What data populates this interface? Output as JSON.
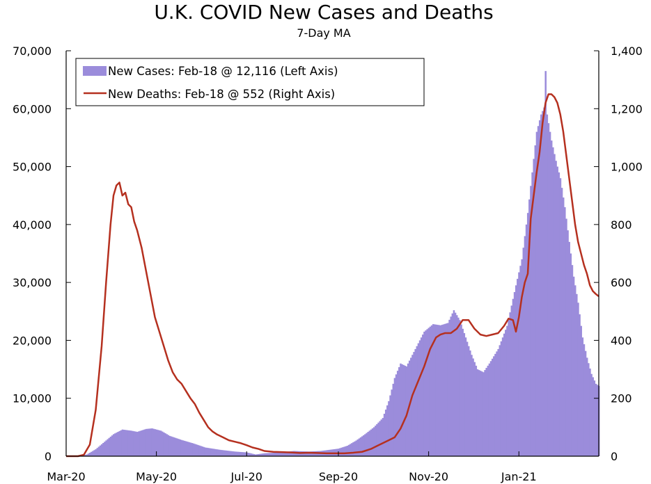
{
  "chart_data": {
    "type": "bar+line",
    "title": "U.K. COVID New Cases and Deaths",
    "subtitle": "7-Day MA",
    "x_start": "2020-03-01",
    "x_end": "2021-02-18",
    "x_tick_labels": [
      "Mar-20",
      "May-20",
      "Jul-20",
      "Sep-20",
      "Nov-20",
      "Jan-21"
    ],
    "x_tick_days": [
      0,
      61,
      122,
      184,
      245,
      306
    ],
    "y_left": {
      "label": "New Cases",
      "ylim": [
        0,
        70000
      ],
      "tick_values": [
        0,
        10000,
        20000,
        30000,
        40000,
        50000,
        60000,
        70000
      ],
      "tick_labels": [
        "0",
        "10,000",
        "20,000",
        "30,000",
        "40,000",
        "50,000",
        "60,000",
        "70,000"
      ]
    },
    "y_right": {
      "label": "New Deaths",
      "ylim": [
        0,
        1400
      ],
      "tick_values": [
        0,
        200,
        400,
        600,
        800,
        1000,
        1200,
        1400
      ],
      "tick_labels": [
        "0",
        "200",
        "400",
        "600",
        "800",
        "1,000",
        "1,200",
        "1,400"
      ]
    },
    "legend": {
      "position": "top-left",
      "entries": [
        "New Cases: Feb-18 @ 12,116 (Left Axis)",
        "New Deaths: Feb-18 @ 552 (Right Axis)"
      ]
    },
    "series": [
      {
        "name": "New Cases",
        "axis": "left",
        "kind": "bar",
        "color": "#9b8cdb",
        "points": [
          [
            0,
            0
          ],
          [
            8,
            0
          ],
          [
            14,
            300
          ],
          [
            20,
            1200
          ],
          [
            26,
            2500
          ],
          [
            32,
            3800
          ],
          [
            38,
            4600
          ],
          [
            44,
            4400
          ],
          [
            48,
            4200
          ],
          [
            54,
            4700
          ],
          [
            58,
            4800
          ],
          [
            64,
            4400
          ],
          [
            70,
            3500
          ],
          [
            78,
            2800
          ],
          [
            86,
            2200
          ],
          [
            94,
            1500
          ],
          [
            104,
            1100
          ],
          [
            114,
            800
          ],
          [
            122,
            650
          ],
          [
            128,
            300
          ],
          [
            134,
            500
          ],
          [
            144,
            650
          ],
          [
            154,
            900
          ],
          [
            164,
            800
          ],
          [
            172,
            900
          ],
          [
            178,
            1100
          ],
          [
            184,
            1300
          ],
          [
            190,
            1800
          ],
          [
            196,
            2700
          ],
          [
            202,
            3800
          ],
          [
            208,
            5000
          ],
          [
            214,
            6600
          ],
          [
            218,
            9500
          ],
          [
            222,
            13500
          ],
          [
            226,
            16000
          ],
          [
            230,
            15500
          ],
          [
            236,
            18500
          ],
          [
            242,
            21500
          ],
          [
            248,
            22800
          ],
          [
            253,
            22600
          ],
          [
            258,
            23000
          ],
          [
            262,
            25200
          ],
          [
            266,
            23500
          ],
          [
            270,
            20500
          ],
          [
            274,
            17500
          ],
          [
            278,
            15000
          ],
          [
            282,
            14500
          ],
          [
            286,
            16000
          ],
          [
            292,
            18500
          ],
          [
            298,
            22500
          ],
          [
            304,
            29500
          ],
          [
            308,
            34000
          ],
          [
            312,
            42000
          ],
          [
            315,
            49000
          ],
          [
            318,
            56000
          ],
          [
            321,
            59000
          ],
          [
            323,
            60200
          ],
          [
            324,
            66500
          ],
          [
            325,
            59000
          ],
          [
            328,
            54500
          ],
          [
            331,
            51000
          ],
          [
            334,
            48000
          ],
          [
            337,
            43000
          ],
          [
            340,
            37000
          ],
          [
            343,
            31000
          ],
          [
            346,
            26500
          ],
          [
            349,
            20500
          ],
          [
            352,
            17000
          ],
          [
            355,
            14200
          ],
          [
            358,
            12500
          ],
          [
            360,
            12116
          ]
        ]
      },
      {
        "name": "New Deaths",
        "axis": "right",
        "kind": "line",
        "color": "#b5301f",
        "points": [
          [
            0,
            0
          ],
          [
            8,
            0
          ],
          [
            12,
            5
          ],
          [
            16,
            40
          ],
          [
            20,
            160
          ],
          [
            24,
            380
          ],
          [
            27,
            600
          ],
          [
            30,
            800
          ],
          [
            32,
            900
          ],
          [
            34,
            935
          ],
          [
            36,
            945
          ],
          [
            38,
            900
          ],
          [
            40,
            910
          ],
          [
            42,
            870
          ],
          [
            44,
            860
          ],
          [
            46,
            810
          ],
          [
            48,
            780
          ],
          [
            51,
            720
          ],
          [
            54,
            640
          ],
          [
            57,
            560
          ],
          [
            60,
            480
          ],
          [
            63,
            430
          ],
          [
            66,
            380
          ],
          [
            69,
            330
          ],
          [
            72,
            290
          ],
          [
            75,
            265
          ],
          [
            78,
            250
          ],
          [
            81,
            225
          ],
          [
            84,
            200
          ],
          [
            87,
            180
          ],
          [
            90,
            150
          ],
          [
            93,
            125
          ],
          [
            96,
            100
          ],
          [
            99,
            85
          ],
          [
            102,
            75
          ],
          [
            106,
            65
          ],
          [
            110,
            55
          ],
          [
            114,
            50
          ],
          [
            118,
            45
          ],
          [
            122,
            38
          ],
          [
            126,
            30
          ],
          [
            130,
            25
          ],
          [
            134,
            18
          ],
          [
            140,
            15
          ],
          [
            146,
            14
          ],
          [
            152,
            13
          ],
          [
            158,
            11
          ],
          [
            164,
            12
          ],
          [
            170,
            11
          ],
          [
            176,
            10
          ],
          [
            182,
            10
          ],
          [
            188,
            10
          ],
          [
            194,
            12
          ],
          [
            200,
            15
          ],
          [
            206,
            25
          ],
          [
            210,
            35
          ],
          [
            214,
            45
          ],
          [
            218,
            55
          ],
          [
            222,
            65
          ],
          [
            226,
            95
          ],
          [
            230,
            140
          ],
          [
            234,
            210
          ],
          [
            238,
            260
          ],
          [
            242,
            310
          ],
          [
            246,
            370
          ],
          [
            250,
            410
          ],
          [
            253,
            420
          ],
          [
            256,
            425
          ],
          [
            260,
            425
          ],
          [
            264,
            440
          ],
          [
            268,
            470
          ],
          [
            272,
            470
          ],
          [
            276,
            440
          ],
          [
            280,
            420
          ],
          [
            284,
            415
          ],
          [
            288,
            420
          ],
          [
            292,
            425
          ],
          [
            296,
            450
          ],
          [
            299,
            475
          ],
          [
            302,
            470
          ],
          [
            304,
            430
          ],
          [
            306,
            480
          ],
          [
            308,
            550
          ],
          [
            310,
            600
          ],
          [
            312,
            630
          ],
          [
            314,
            820
          ],
          [
            316,
            900
          ],
          [
            318,
            980
          ],
          [
            320,
            1050
          ],
          [
            322,
            1150
          ],
          [
            324,
            1220
          ],
          [
            326,
            1250
          ],
          [
            328,
            1250
          ],
          [
            330,
            1240
          ],
          [
            332,
            1220
          ],
          [
            334,
            1180
          ],
          [
            336,
            1120
          ],
          [
            338,
            1040
          ],
          [
            340,
            960
          ],
          [
            342,
            880
          ],
          [
            344,
            800
          ],
          [
            346,
            740
          ],
          [
            348,
            700
          ],
          [
            350,
            660
          ],
          [
            352,
            630
          ],
          [
            354,
            590
          ],
          [
            356,
            570
          ],
          [
            358,
            560
          ],
          [
            360,
            552
          ]
        ]
      }
    ]
  }
}
